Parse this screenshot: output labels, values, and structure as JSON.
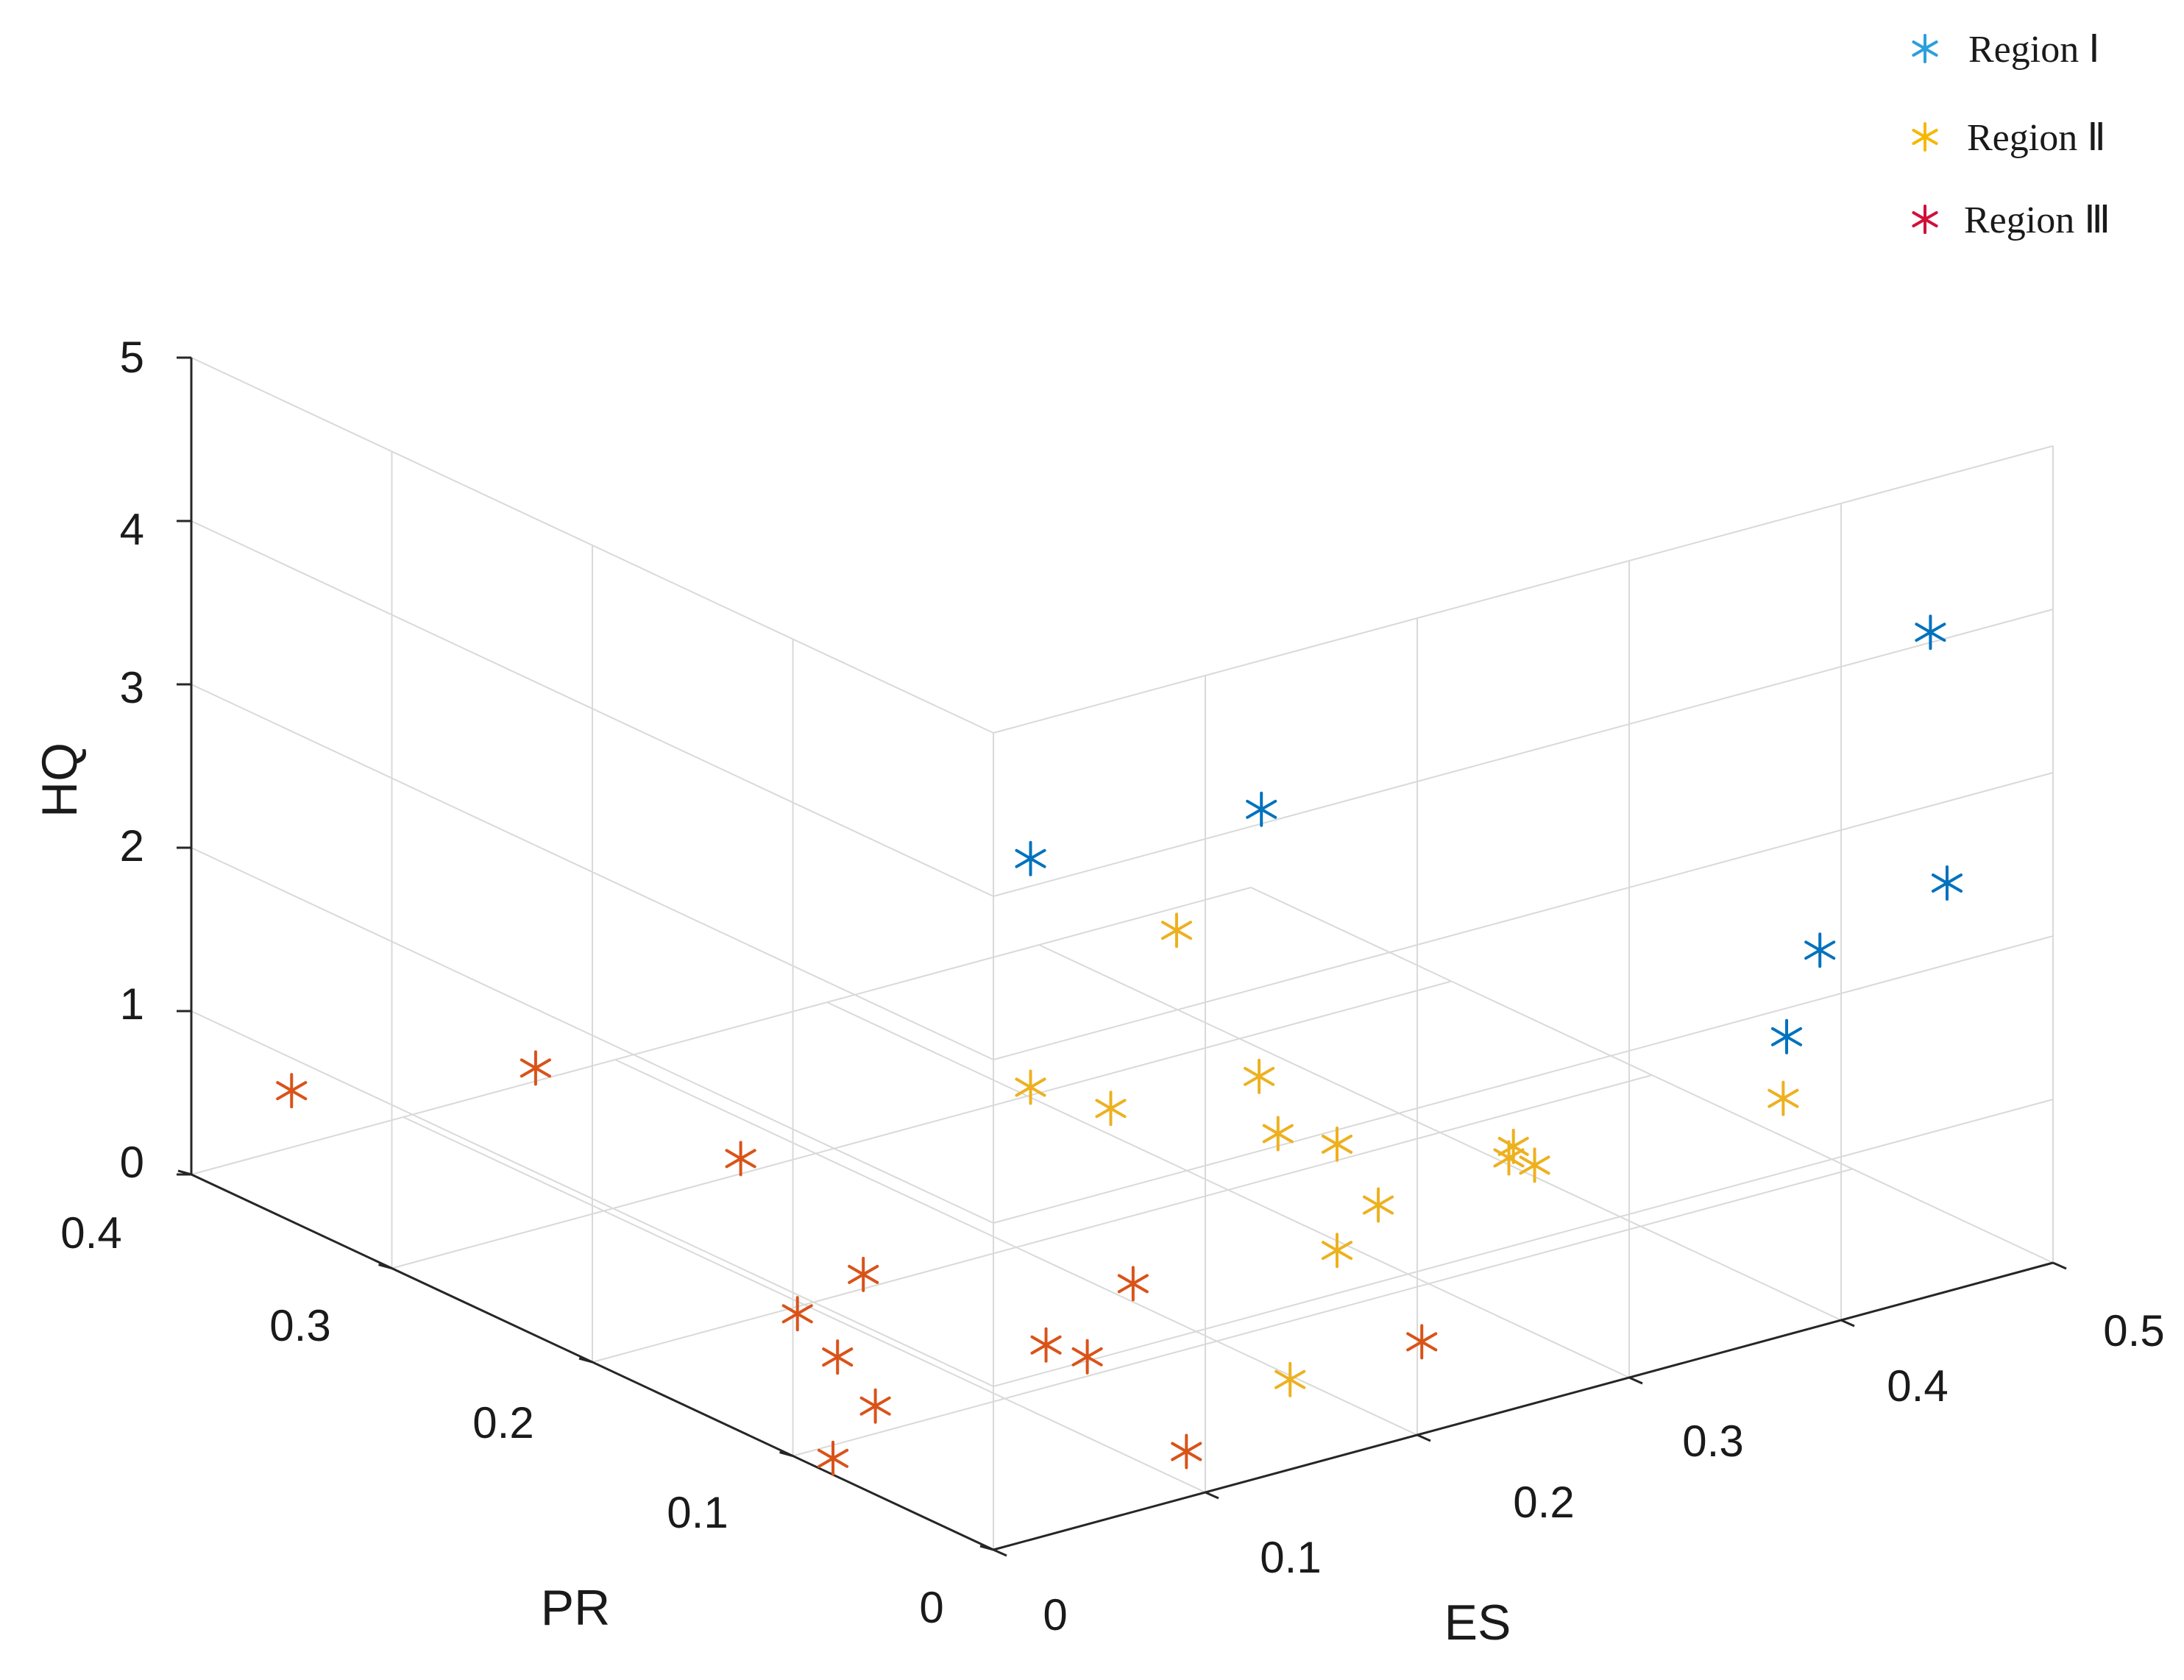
{
  "chart_data": {
    "type": "scatter3d",
    "title": "",
    "axes": {
      "x": {
        "label": "ES",
        "range": [
          0,
          0.5
        ],
        "ticks": [
          0,
          0.1,
          0.2,
          0.3,
          0.4,
          0.5
        ],
        "tick_labels": [
          "0",
          "0.1",
          "0.2",
          "0.3",
          "0.4",
          "0.5"
        ]
      },
      "y": {
        "label": "PR",
        "range": [
          0,
          0.4
        ],
        "ticks": [
          0,
          0.1,
          0.2,
          0.3,
          0.4
        ],
        "tick_labels": [
          "0",
          "0.1",
          "0.2",
          "0.3",
          "0.4"
        ]
      },
      "z": {
        "label": "HQ",
        "range": [
          0,
          5
        ],
        "ticks": [
          0,
          1,
          2,
          3,
          4,
          5
        ],
        "tick_labels": [
          "0",
          "1",
          "2",
          "3",
          "4",
          "5"
        ]
      }
    },
    "grid": true,
    "legend_position": "top-right",
    "series": [
      {
        "name": "Region Ⅰ",
        "color": "#0072BD",
        "legend_color": "#2aa0dc",
        "marker": "asterisk",
        "points": [
          [
            0.15,
            0.14,
            2.9
          ],
          [
            0.24,
            0.12,
            3.0
          ],
          [
            0.39,
            0.0,
            2.3
          ],
          [
            0.48,
            0.04,
            3.7
          ],
          [
            0.45,
            0.08,
            1.1
          ],
          [
            0.45,
            0.0,
            2.5
          ]
        ]
      },
      {
        "name": "Region Ⅱ",
        "color": "#EDB120",
        "legend_color": "#f5b800",
        "marker": "asterisk",
        "points": [
          [
            0.2,
            0.12,
            2.4
          ],
          [
            0.15,
            0.1,
            1.6
          ],
          [
            0.15,
            0.14,
            1.5
          ],
          [
            0.22,
            0.1,
            1.55
          ],
          [
            0.21,
            0.08,
            1.35
          ],
          [
            0.2,
            0.04,
            1.55
          ],
          [
            0.21,
            0.03,
            1.2
          ],
          [
            0.2,
            0.04,
            0.9
          ],
          [
            0.14,
            0.0,
            0.55
          ],
          [
            0.3,
            0.06,
            1.0
          ],
          [
            0.34,
            0.1,
            0.7
          ],
          [
            0.35,
            0.1,
            0.55
          ],
          [
            0.42,
            0.05,
            1.0
          ]
        ]
      },
      {
        "name": "Region Ⅲ",
        "color": "#D95319",
        "legend_color": "#d0103a",
        "marker": "asterisk",
        "points": [
          [
            0.0,
            0.35,
            0.8
          ],
          [
            0.03,
            0.26,
            1.35
          ],
          [
            0.07,
            0.2,
            1.0
          ],
          [
            0.04,
            0.14,
            0.5
          ],
          [
            0.09,
            0.16,
            0.45
          ],
          [
            0.04,
            0.12,
            0.35
          ],
          [
            0.02,
            0.08,
            0.35
          ],
          [
            0.11,
            0.09,
            0.35
          ],
          [
            0.12,
            0.08,
            0.3
          ],
          [
            0.17,
            0.11,
            0.4
          ],
          [
            0.0,
            0.08,
            0.1
          ],
          [
            0.11,
            0.02,
            0.1
          ],
          [
            0.24,
            0.04,
            0.2
          ]
        ]
      }
    ]
  }
}
